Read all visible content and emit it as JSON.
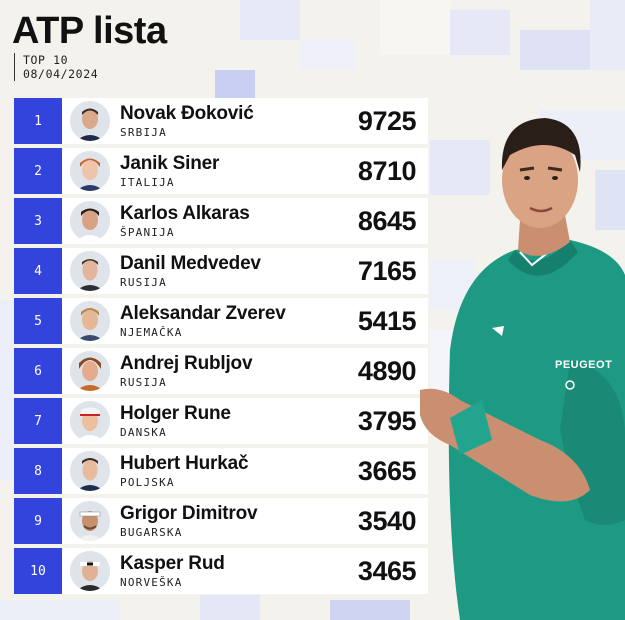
{
  "header": {
    "title": "ATP lista",
    "subtitle_line1": "TOP 10",
    "subtitle_line2": "08/04/2024"
  },
  "colors": {
    "rank_bg": "#3344dd",
    "row_bg": "#ffffff",
    "shirt": "#1e9a84",
    "page_bg": "#f3f2ec"
  },
  "rankings": [
    {
      "rank": "1",
      "name": "Novak Đoković",
      "country": "SRBIJA",
      "points": "9725"
    },
    {
      "rank": "2",
      "name": "Janik Siner",
      "country": "ITALIJA",
      "points": "8710"
    },
    {
      "rank": "3",
      "name": "Karlos Alkaras",
      "country": "ŠPANIJA",
      "points": "8645"
    },
    {
      "rank": "4",
      "name": "Danil Medvedev",
      "country": "RUSIJA",
      "points": "7165"
    },
    {
      "rank": "5",
      "name": "Aleksandar Zverev",
      "country": "NJEMAČKA",
      "points": "5415"
    },
    {
      "rank": "6",
      "name": "Andrej Rubljov",
      "country": "RUSIJA",
      "points": "4890"
    },
    {
      "rank": "7",
      "name": "Holger Rune",
      "country": "DANSKA",
      "points": "3795"
    },
    {
      "rank": "8",
      "name": "Hubert Hurkač",
      "country": "POLJSKA",
      "points": "3665"
    },
    {
      "rank": "9",
      "name": "Grigor Dimitrov",
      "country": "BUGARSKA",
      "points": "3540"
    },
    {
      "rank": "10",
      "name": "Kasper Rud",
      "country": "NORVEŠKA",
      "points": "3465"
    }
  ],
  "featured_player": {
    "shirt_brand": "PEUGEOT"
  }
}
